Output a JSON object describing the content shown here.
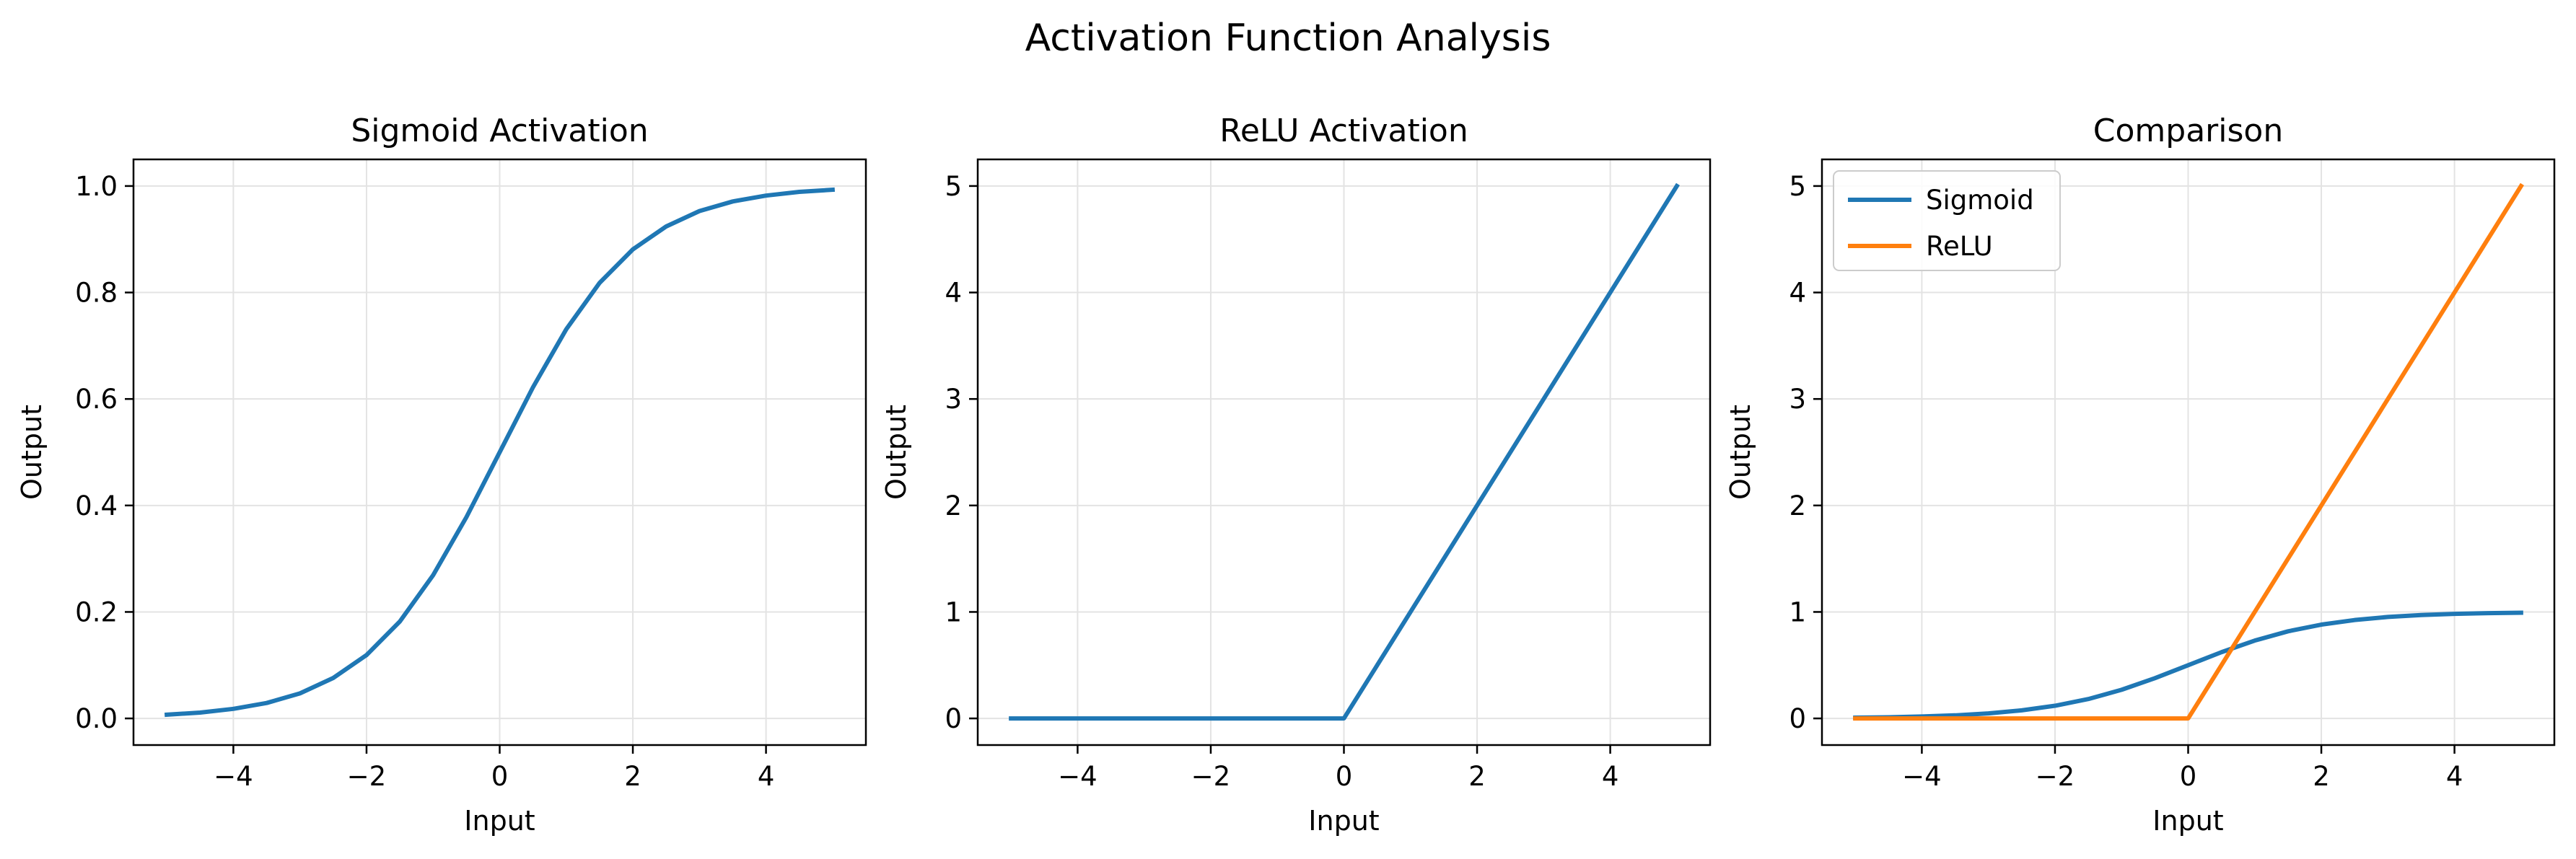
{
  "figure_title": "Activation Function Analysis",
  "colors": {
    "sigmoid": "#1f77b4",
    "relu": "#ff7f0e",
    "grid": "#e3e3e3",
    "axes": "#000000"
  },
  "chart_data": [
    {
      "type": "line",
      "title": "Sigmoid Activation",
      "xlabel": "Input",
      "ylabel": "Output",
      "xlim": [
        -5.5,
        5.5
      ],
      "ylim": [
        -0.05,
        1.05
      ],
      "xticks": [
        -4,
        -2,
        0,
        2,
        4
      ],
      "xtick_labels": [
        "−4",
        "−2",
        "0",
        "2",
        "4"
      ],
      "yticks": [
        0.0,
        0.2,
        0.4,
        0.6,
        0.8,
        1.0
      ],
      "ytick_labels": [
        "0.0",
        "0.2",
        "0.4",
        "0.6",
        "0.8",
        "1.0"
      ],
      "grid": true,
      "legend": null,
      "series": [
        {
          "color": "#1f77b4",
          "x": [
            -5,
            -4.5,
            -4,
            -3.5,
            -3,
            -2.5,
            -2,
            -1.5,
            -1,
            -0.5,
            0,
            0.5,
            1,
            1.5,
            2,
            2.5,
            3,
            3.5,
            4,
            4.5,
            5
          ],
          "values": [
            0.007,
            0.011,
            0.018,
            0.029,
            0.047,
            0.076,
            0.119,
            0.182,
            0.269,
            0.378,
            0.5,
            0.622,
            0.731,
            0.818,
            0.881,
            0.924,
            0.953,
            0.971,
            0.982,
            0.989,
            0.993
          ]
        }
      ]
    },
    {
      "type": "line",
      "title": "ReLU Activation",
      "xlabel": "Input",
      "ylabel": "Output",
      "xlim": [
        -5.5,
        5.5
      ],
      "ylim": [
        -0.25,
        5.25
      ],
      "xticks": [
        -4,
        -2,
        0,
        2,
        4
      ],
      "xtick_labels": [
        "−4",
        "−2",
        "0",
        "2",
        "4"
      ],
      "yticks": [
        0,
        1,
        2,
        3,
        4,
        5
      ],
      "ytick_labels": [
        "0",
        "1",
        "2",
        "3",
        "4",
        "5"
      ],
      "grid": true,
      "legend": null,
      "series": [
        {
          "color": "#1f77b4",
          "x": [
            -5,
            -4,
            -3,
            -2,
            -1,
            0,
            0.1,
            1,
            2,
            3,
            4,
            5
          ],
          "values": [
            0,
            0,
            0,
            0,
            0,
            0,
            0.1,
            1,
            2,
            3,
            4,
            5
          ]
        }
      ]
    },
    {
      "type": "line",
      "title": "Comparison",
      "xlabel": "Input",
      "ylabel": "Output",
      "xlim": [
        -5.5,
        5.5
      ],
      "ylim": [
        -0.25,
        5.25
      ],
      "xticks": [
        -4,
        -2,
        0,
        2,
        4
      ],
      "xtick_labels": [
        "−4",
        "−2",
        "0",
        "2",
        "4"
      ],
      "yticks": [
        0,
        1,
        2,
        3,
        4,
        5
      ],
      "ytick_labels": [
        "0",
        "1",
        "2",
        "3",
        "4",
        "5"
      ],
      "grid": true,
      "legend": "top-left",
      "series": [
        {
          "name": "Sigmoid",
          "color": "#1f77b4",
          "x": [
            -5,
            -4.5,
            -4,
            -3.5,
            -3,
            -2.5,
            -2,
            -1.5,
            -1,
            -0.5,
            0,
            0.5,
            1,
            1.5,
            2,
            2.5,
            3,
            3.5,
            4,
            4.5,
            5
          ],
          "values": [
            0.007,
            0.011,
            0.018,
            0.029,
            0.047,
            0.076,
            0.119,
            0.182,
            0.269,
            0.378,
            0.5,
            0.622,
            0.731,
            0.818,
            0.881,
            0.924,
            0.953,
            0.971,
            0.982,
            0.989,
            0.993
          ]
        },
        {
          "name": "ReLU",
          "color": "#ff7f0e",
          "x": [
            -5,
            -4,
            -3,
            -2,
            -1,
            0,
            0.1,
            1,
            2,
            3,
            4,
            5
          ],
          "values": [
            0,
            0,
            0,
            0,
            0,
            0,
            0.1,
            1,
            2,
            3,
            4,
            5
          ]
        }
      ]
    }
  ]
}
